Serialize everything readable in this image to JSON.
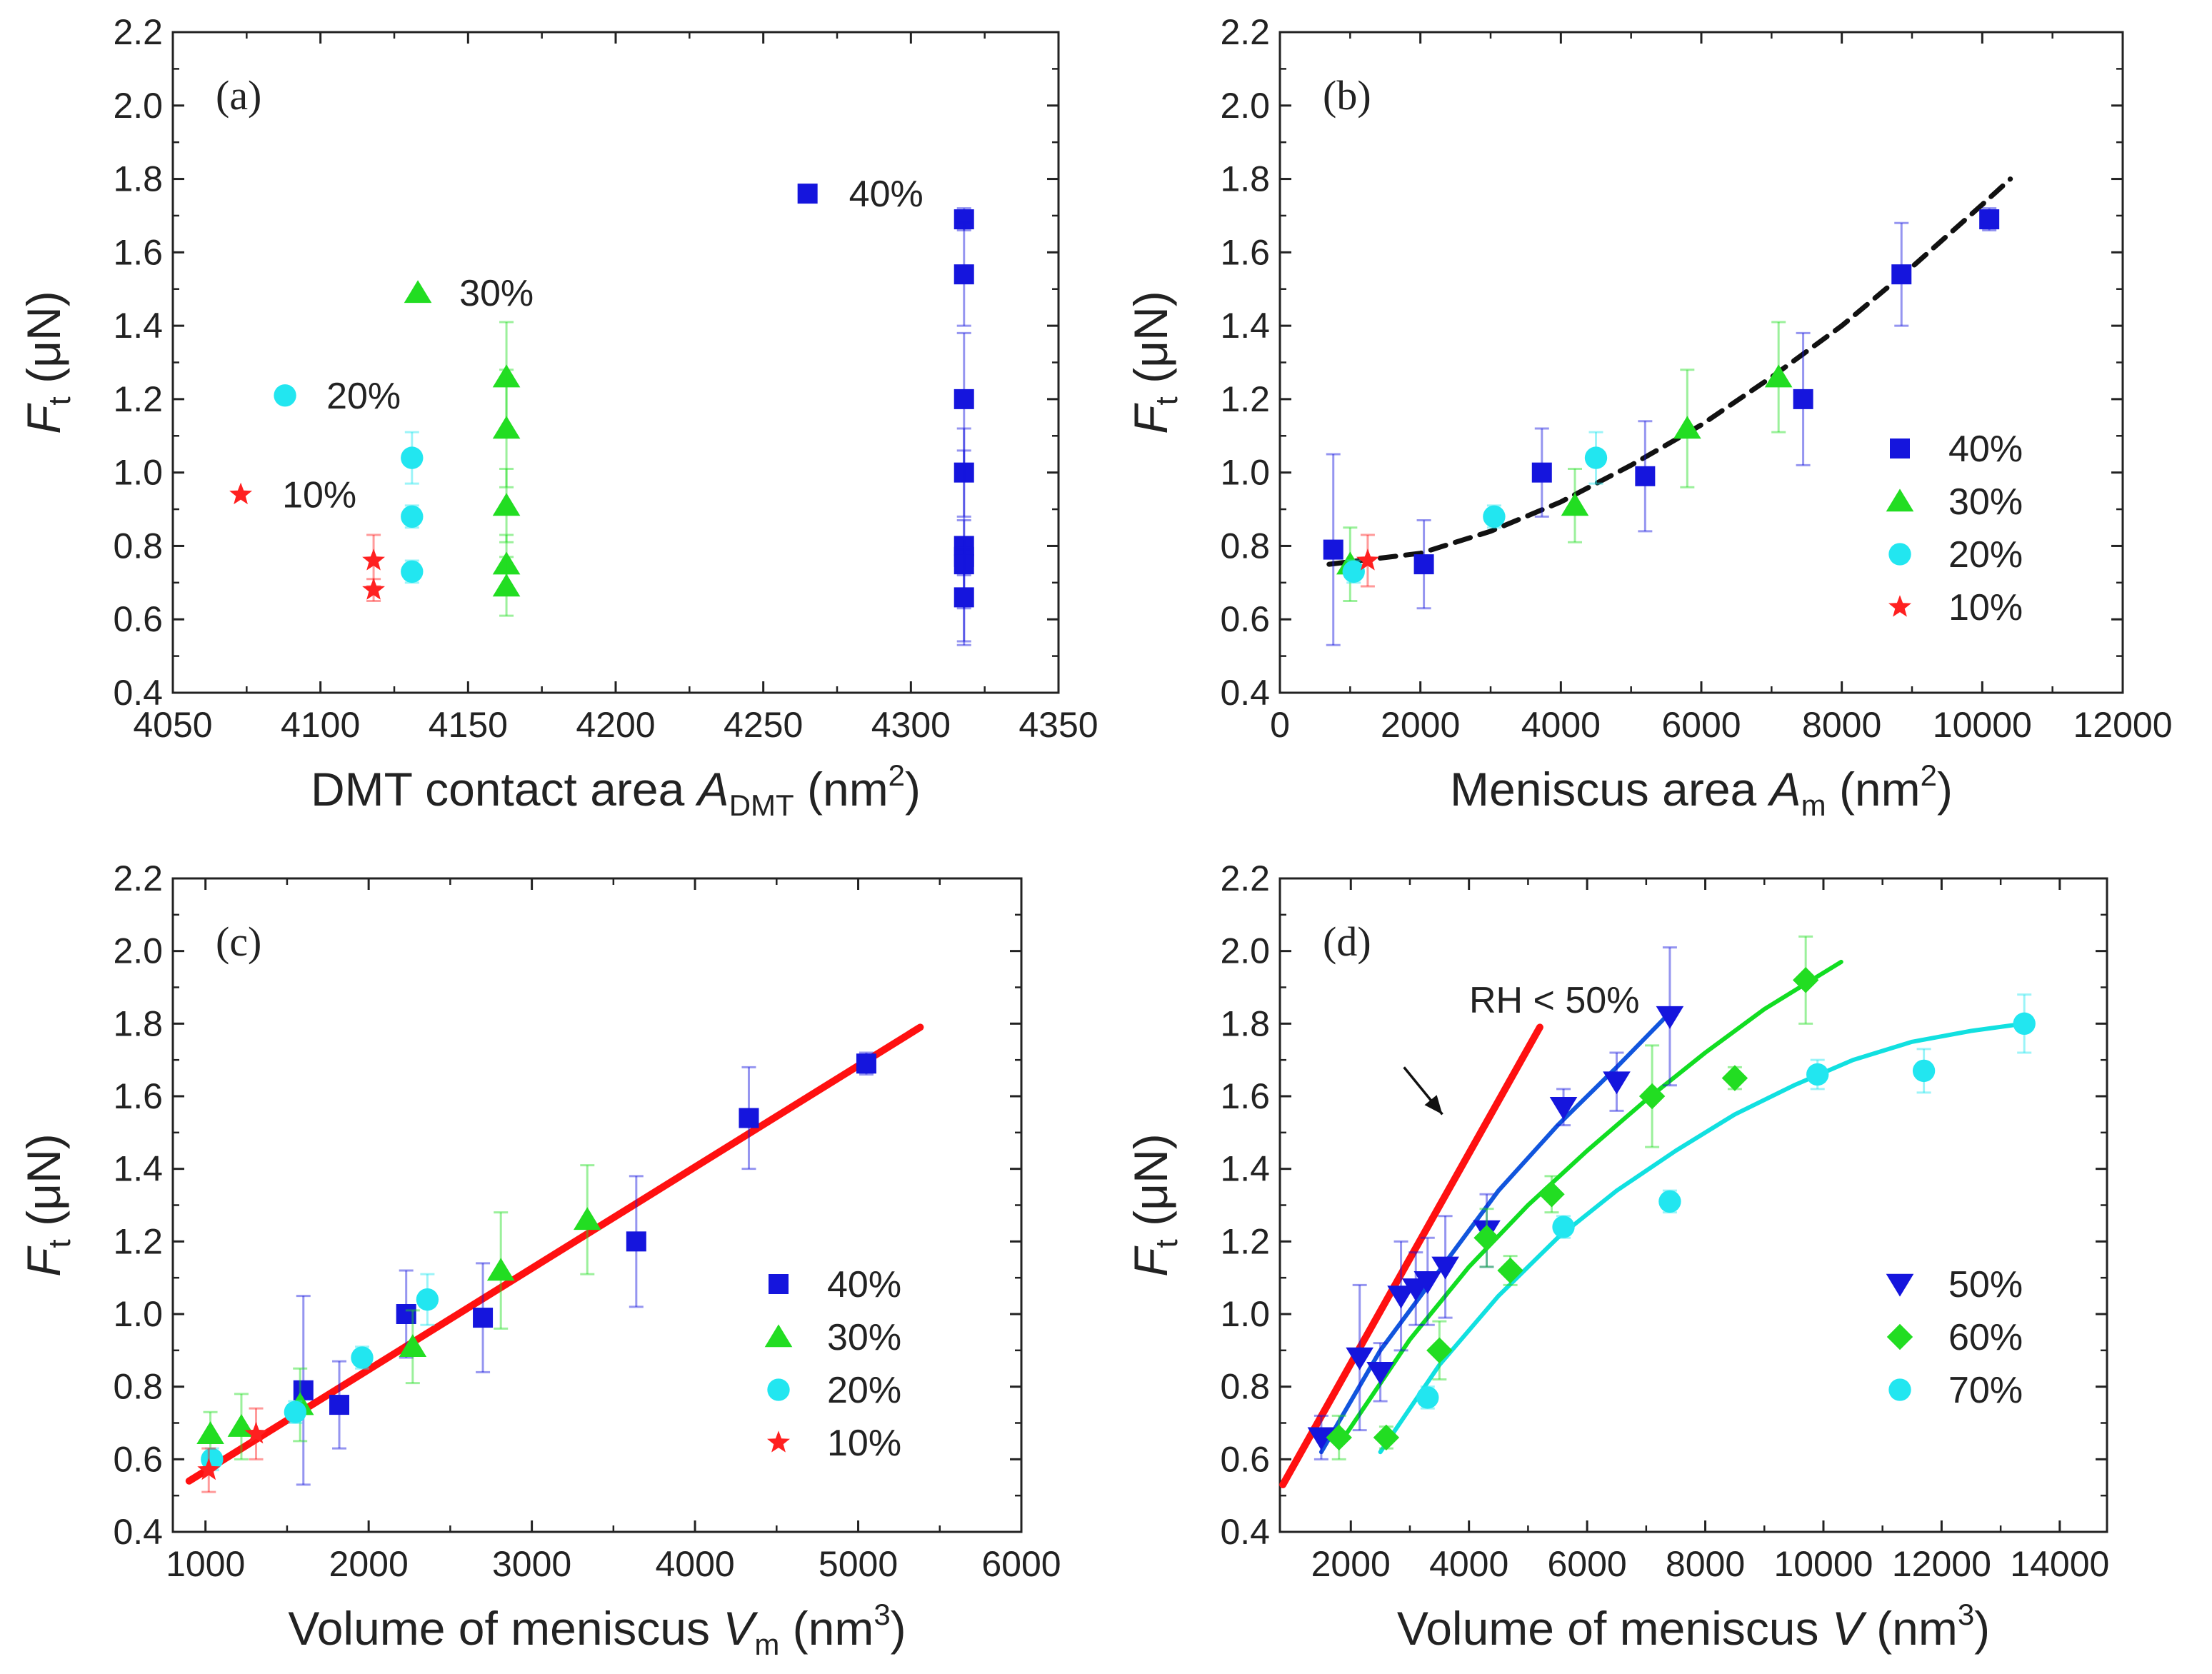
{
  "chart_data": [
    {
      "panel": "a",
      "type": "scatter",
      "panel_label": "(a)",
      "ylabel": {
        "main": "F",
        "sub": "t",
        "unit": "(μN)"
      },
      "xlabel": {
        "pre": "DMT contact area ",
        "var": "A",
        "sub": "DMT",
        "post": " (nm",
        "sup": "2",
        "close": ")"
      },
      "xlim": [
        4050,
        4350
      ],
      "ylim": [
        0.4,
        2.2
      ],
      "xticks": [
        "4050",
        "4100",
        "4150",
        "4200",
        "4250",
        "4300",
        "4350"
      ],
      "yticks": [
        "0.4",
        "0.6",
        "0.8",
        "1.0",
        "1.2",
        "1.4",
        "1.6",
        "1.8",
        "2.0",
        "2.2"
      ],
      "series": [
        {
          "name": "10%",
          "color": "#ff2020",
          "marker": "star",
          "points": [
            [
              4118,
              0.76,
              0.07
            ],
            [
              4118,
              0.68,
              0.03
            ]
          ]
        },
        {
          "name": "20%",
          "color": "#22e6f0",
          "marker": "circle",
          "points": [
            [
              4131,
              1.04,
              0.07
            ],
            [
              4131,
              0.88,
              0.03
            ],
            [
              4131,
              0.73,
              0.03
            ]
          ]
        },
        {
          "name": "30%",
          "color": "#22dd22",
          "marker": "triangle",
          "points": [
            [
              4163,
              1.26,
              0.15
            ],
            [
              4163,
              1.12,
              0.16
            ],
            [
              4163,
              0.91,
              0.1
            ],
            [
              4163,
              0.75,
              0.08
            ],
            [
              4163,
              0.69,
              0.08
            ]
          ]
        },
        {
          "name": "40%",
          "color": "#1515dd",
          "marker": "square",
          "points": [
            [
              4318,
              1.69,
              0.03
            ],
            [
              4318,
              1.54,
              0.14
            ],
            [
              4318,
              1.2,
              0.18
            ],
            [
              4318,
              1.0,
              0.12
            ],
            [
              4318,
              0.8,
              0.26
            ],
            [
              4318,
              0.77,
              0.05
            ],
            [
              4318,
              0.75,
              0.12
            ],
            [
              4318,
              0.66,
              0.13
            ]
          ]
        }
      ],
      "annotations": [
        {
          "text": "10%",
          "marker": "star",
          "color": "#ff2020",
          "mx": 4073,
          "my": 0.94
        },
        {
          "text": "20%",
          "marker": "circle",
          "color": "#22e6f0",
          "mx": 4088,
          "my": 1.21
        },
        {
          "text": "30%",
          "marker": "triangle",
          "color": "#22dd22",
          "mx": 4133,
          "my": 1.49
        },
        {
          "text": "40%",
          "marker": "square",
          "color": "#1515dd",
          "mx": 4265,
          "my": 1.76
        }
      ]
    },
    {
      "panel": "b",
      "type": "scatter",
      "panel_label": "(b)",
      "ylabel": {
        "main": "F",
        "sub": "t",
        "unit": "(μN)"
      },
      "xlabel": {
        "pre": "Meniscus area ",
        "var": "A",
        "sub": "m",
        "post": " (nm",
        "sup": "2",
        "close": ")"
      },
      "xlim": [
        0,
        12000
      ],
      "ylim": [
        0.4,
        2.2
      ],
      "xticks": [
        "0",
        "2000",
        "4000",
        "6000",
        "8000",
        "10000",
        "12000"
      ],
      "yticks": [
        "0.4",
        "0.6",
        "0.8",
        "1.0",
        "1.2",
        "1.4",
        "1.6",
        "1.8",
        "2.0",
        "2.2"
      ],
      "legend": [
        "40%",
        "30%",
        "20%",
        "10%"
      ],
      "series": [
        {
          "name": "40%",
          "color": "#1515dd",
          "marker": "square",
          "points": [
            [
              760,
              0.79,
              0.26
            ],
            [
              2050,
              0.75,
              0.12
            ],
            [
              3730,
              1.0,
              0.12
            ],
            [
              5200,
              0.99,
              0.15
            ],
            [
              7450,
              1.2,
              0.18
            ],
            [
              8850,
              1.54,
              0.14
            ],
            [
              10100,
              1.69,
              0.03
            ]
          ]
        },
        {
          "name": "30%",
          "color": "#22dd22",
          "marker": "triangle",
          "points": [
            [
              1000,
              0.75,
              0.1
            ],
            [
              4200,
              0.91,
              0.1
            ],
            [
              5800,
              1.12,
              0.16
            ],
            [
              7100,
              1.26,
              0.15
            ]
          ]
        },
        {
          "name": "20%",
          "color": "#22e6f0",
          "marker": "circle",
          "points": [
            [
              1050,
              0.73,
              0.03
            ],
            [
              3050,
              0.88,
              0.03
            ],
            [
              4500,
              1.04,
              0.07
            ]
          ]
        },
        {
          "name": "10%",
          "color": "#ff2020",
          "marker": "star",
          "points": [
            [
              1250,
              0.76,
              0.07
            ]
          ]
        }
      ],
      "fits": [
        {
          "style": "dashed",
          "color": "#111111",
          "x": [
            700,
            2000,
            3000,
            4000,
            5000,
            6000,
            7000,
            8000,
            9000,
            10000,
            10400
          ],
          "y": [
            0.75,
            0.78,
            0.84,
            0.92,
            1.02,
            1.13,
            1.26,
            1.4,
            1.56,
            1.73,
            1.8
          ]
        }
      ]
    },
    {
      "panel": "c",
      "type": "scatter",
      "panel_label": "(c)",
      "ylabel": {
        "main": "F",
        "sub": "t",
        "unit": "(μN)"
      },
      "xlabel": {
        "pre": "Volume of meniscus ",
        "var": "V",
        "sub": "m",
        "post": " (nm",
        "sup": "3",
        "close": ")"
      },
      "xlim": [
        800,
        6000
      ],
      "ylim": [
        0.4,
        2.2
      ],
      "xticks": [
        "1000",
        "2000",
        "3000",
        "4000",
        "5000",
        "6000"
      ],
      "yticks": [
        "0.4",
        "0.6",
        "0.8",
        "1.0",
        "1.2",
        "1.4",
        "1.6",
        "1.8",
        "2.0",
        "2.2"
      ],
      "legend": [
        "40%",
        "30%",
        "20%",
        "10%"
      ],
      "series": [
        {
          "name": "40%",
          "color": "#1515dd",
          "marker": "square",
          "points": [
            [
              1600,
              0.79,
              0.26
            ],
            [
              1820,
              0.75,
              0.12
            ],
            [
              2230,
              1.0,
              0.12
            ],
            [
              2700,
              0.99,
              0.15
            ],
            [
              3640,
              1.2,
              0.18
            ],
            [
              4330,
              1.54,
              0.14
            ],
            [
              5050,
              1.69,
              0.03
            ]
          ]
        },
        {
          "name": "30%",
          "color": "#22dd22",
          "marker": "triangle",
          "points": [
            [
              1030,
              0.67,
              0.06
            ],
            [
              1220,
              0.69,
              0.09
            ],
            [
              1580,
              0.75,
              0.1
            ],
            [
              2270,
              0.91,
              0.1
            ],
            [
              2810,
              1.12,
              0.16
            ],
            [
              3340,
              1.26,
              0.15
            ]
          ]
        },
        {
          "name": "20%",
          "color": "#22e6f0",
          "marker": "circle",
          "points": [
            [
              1040,
              0.6,
              0.03
            ],
            [
              1550,
              0.73,
              0.03
            ],
            [
              1960,
              0.88,
              0.03
            ],
            [
              2360,
              1.04,
              0.07
            ]
          ]
        },
        {
          "name": "10%",
          "color": "#ff2020",
          "marker": "star",
          "points": [
            [
              1020,
              0.57,
              0.06
            ],
            [
              1310,
              0.67,
              0.07
            ]
          ]
        }
      ],
      "fits": [
        {
          "style": "solid",
          "color": "#ff1010",
          "x": [
            900,
            5380
          ],
          "y": [
            0.54,
            1.79
          ]
        }
      ]
    },
    {
      "panel": "d",
      "type": "scatter",
      "panel_label": "(d)",
      "ylabel": {
        "main": "F",
        "sub": "t",
        "unit": "(μN)"
      },
      "xlabel": {
        "pre": "Volume of meniscus ",
        "var": "V",
        "sub": "",
        "post": " (nm",
        "sup": "3",
        "close": ")"
      },
      "xlim": [
        800,
        14800
      ],
      "ylim": [
        0.4,
        2.2
      ],
      "xticks": [
        "2000",
        "4000",
        "6000",
        "8000",
        "10000",
        "12000",
        "14000"
      ],
      "yticks": [
        "0.4",
        "0.6",
        "0.8",
        "1.0",
        "1.2",
        "1.4",
        "1.6",
        "1.8",
        "2.0",
        "2.2"
      ],
      "legend": [
        "50%",
        "60%",
        "70%"
      ],
      "annotation": {
        "text": "RH < 50%",
        "arrow_from": [
          2900,
          1.68
        ],
        "arrow_to": [
          3550,
          1.55
        ]
      },
      "series": [
        {
          "name": "50%",
          "color": "#1515dd",
          "marker": "triangle-down",
          "points": [
            [
              1500,
              0.66,
              0.06
            ],
            [
              2150,
              0.88,
              0.2
            ],
            [
              2500,
              0.84,
              0.08
            ],
            [
              2850,
              1.05,
              0.15
            ],
            [
              3100,
              1.07,
              0.1
            ],
            [
              3300,
              1.09,
              0.12
            ],
            [
              3600,
              1.13,
              0.14
            ],
            [
              4300,
              1.23,
              0.1
            ],
            [
              5600,
              1.57,
              0.05
            ],
            [
              6500,
              1.64,
              0.08
            ],
            [
              7400,
              1.82,
              0.19
            ]
          ]
        },
        {
          "name": "60%",
          "color": "#22dd22",
          "marker": "diamond",
          "points": [
            [
              1800,
              0.66,
              0.06
            ],
            [
              2600,
              0.66,
              0.03
            ],
            [
              3500,
              0.9,
              0.08
            ],
            [
              4300,
              1.21,
              0.08
            ],
            [
              4700,
              1.12,
              0.04
            ],
            [
              5400,
              1.33,
              0.05
            ],
            [
              7100,
              1.6,
              0.14
            ],
            [
              8500,
              1.65,
              0.03
            ],
            [
              9700,
              1.92,
              0.12
            ]
          ]
        },
        {
          "name": "70%",
          "color": "#22e6f0",
          "marker": "circle",
          "points": [
            [
              3300,
              0.77,
              0.03
            ],
            [
              5600,
              1.24,
              0.03
            ],
            [
              7400,
              1.31,
              0.03
            ],
            [
              9900,
              1.66,
              0.04
            ],
            [
              11700,
              1.67,
              0.06
            ],
            [
              13400,
              1.8,
              0.08
            ]
          ]
        }
      ],
      "fits": [
        {
          "style": "solid",
          "color": "#ff1010",
          "x": [
            850,
            5200
          ],
          "y": [
            0.53,
            1.79
          ]
        },
        {
          "style": "solid",
          "color": "#1155dd",
          "x": [
            1500,
            2500,
            3500,
            4500,
            5500,
            6500,
            7400
          ],
          "y": [
            0.62,
            0.9,
            1.12,
            1.34,
            1.52,
            1.68,
            1.83
          ]
        },
        {
          "style": "solid",
          "color": "#11dd22",
          "x": [
            1800,
            3000,
            4000,
            5000,
            6000,
            7000,
            8000,
            9000,
            10300
          ],
          "y": [
            0.64,
            0.93,
            1.13,
            1.3,
            1.45,
            1.59,
            1.72,
            1.84,
            1.97
          ]
        },
        {
          "style": "solid",
          "color": "#11e0e0",
          "x": [
            2500,
            3500,
            4500,
            5500,
            6500,
            7500,
            8500,
            9500,
            10500,
            11500,
            12500,
            13400
          ],
          "y": [
            0.62,
            0.86,
            1.05,
            1.21,
            1.34,
            1.45,
            1.55,
            1.63,
            1.7,
            1.75,
            1.78,
            1.8
          ]
        }
      ]
    }
  ]
}
